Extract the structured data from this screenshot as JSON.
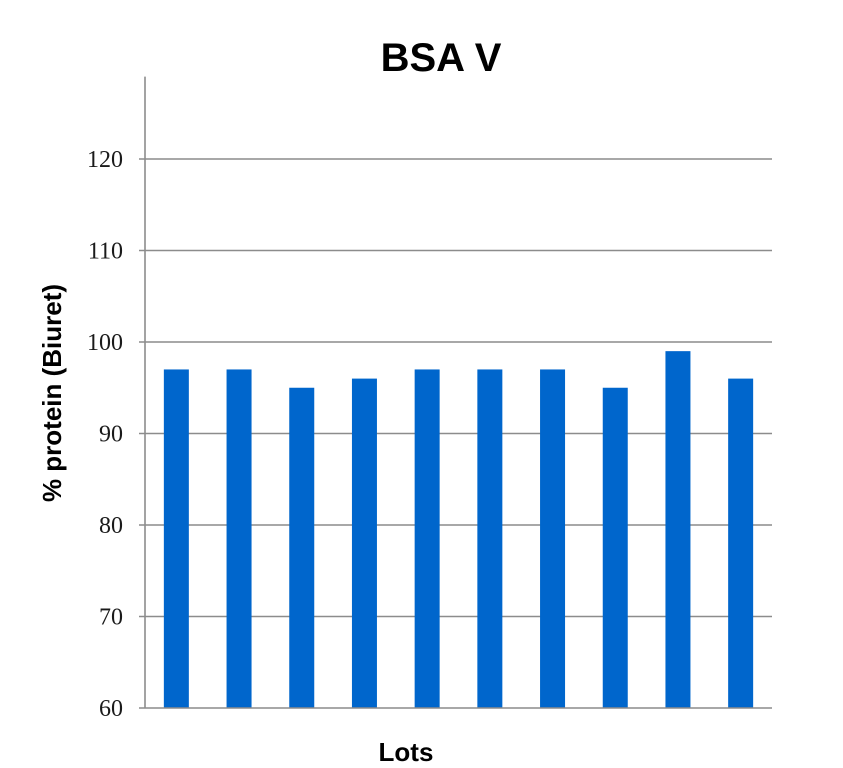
{
  "chart_data": {
    "type": "bar",
    "title": "BSA V",
    "xlabel": "Lots",
    "ylabel": "% protein (Biuret)",
    "categories": [
      "",
      "",
      "",
      "",
      "",
      "",
      "",
      "",
      "",
      ""
    ],
    "values": [
      97,
      97,
      95,
      96,
      97,
      97,
      97,
      95,
      99,
      96
    ],
    "ylim": [
      60,
      129
    ],
    "yticks": [
      60,
      70,
      80,
      90,
      100,
      110,
      120
    ],
    "grid": true,
    "legend": "none",
    "bar_color": "#0066cc"
  }
}
